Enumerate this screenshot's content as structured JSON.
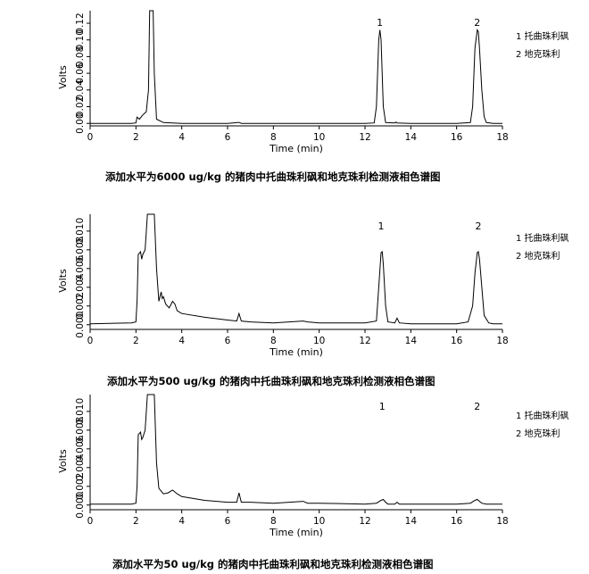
{
  "chart_data": [
    {
      "type": "line",
      "title": "添加水平为6000 ug/kg 的猪肉中托曲珠利砜和地克珠利检测液相色谱图",
      "xlabel": "Time (min)",
      "ylabel": "Volts",
      "xlim": [
        0,
        18
      ],
      "xticks": [
        "0",
        "2",
        "4",
        "6",
        "8",
        "10",
        "12",
        "14",
        "16",
        "18"
      ],
      "yticks": [
        "0.00",
        "0.02",
        "0.04",
        "0.06",
        "0.08",
        "0.10",
        "0.12"
      ],
      "ylim": [
        -0.003,
        0.135
      ],
      "peak_labels": [
        {
          "label": "1",
          "x": 12.65
        },
        {
          "label": "2",
          "x": 16.9
        }
      ],
      "legend": [
        "1  托曲珠利砜",
        "2  地克珠利"
      ],
      "x": [
        0,
        1.8,
        2.0,
        2.05,
        2.15,
        2.3,
        2.45,
        2.55,
        2.6,
        2.65,
        2.7,
        2.75,
        2.8,
        2.9,
        3.2,
        4.0,
        6.0,
        6.5,
        6.6,
        8.0,
        10.0,
        12.0,
        12.4,
        12.5,
        12.6,
        12.65,
        12.7,
        12.8,
        12.9,
        13.3,
        13.35,
        13.4,
        14.0,
        16.0,
        16.6,
        16.7,
        16.8,
        16.9,
        16.95,
        17.0,
        17.1,
        17.2,
        17.3,
        17.6,
        18.0
      ],
      "y": [
        0.0,
        0.0,
        0.0005,
        0.0075,
        0.005,
        0.01,
        0.014,
        0.04,
        0.135,
        0.135,
        0.135,
        0.135,
        0.06,
        0.005,
        0.001,
        0.0,
        0.0,
        0.0012,
        0.0,
        0.0,
        0.0,
        0.0,
        0.0005,
        0.02,
        0.1,
        0.112,
        0.1,
        0.02,
        0.001,
        0.0005,
        0.0015,
        0.0005,
        0.0,
        0.0,
        0.001,
        0.02,
        0.09,
        0.112,
        0.11,
        0.09,
        0.04,
        0.008,
        0.001,
        0.0,
        0.0
      ]
    },
    {
      "type": "line",
      "title": "添加水平为500 ug/kg 的猪肉中托曲珠利砜和地克珠利检测液相色谱图",
      "xlabel": "Time (min)",
      "ylabel": "Volts",
      "xlim": [
        0,
        18
      ],
      "xticks": [
        "0",
        "2",
        "4",
        "6",
        "8",
        "10",
        "12",
        "14",
        "16",
        "18"
      ],
      "yticks": [
        "0.000",
        "0.002",
        "0.004",
        "0.006",
        "0.008",
        "0.010"
      ],
      "ylim": [
        -0.0005,
        0.0118
      ],
      "peak_labels": [
        {
          "label": "1",
          "x": 12.7
        },
        {
          "label": "2",
          "x": 16.95
        }
      ],
      "legend": [
        "1  托曲珠利砜",
        "2  地克珠利"
      ],
      "x": [
        0,
        1.8,
        2.0,
        2.05,
        2.1,
        2.2,
        2.25,
        2.3,
        2.4,
        2.5,
        2.6,
        2.7,
        2.8,
        2.9,
        3.0,
        3.1,
        3.15,
        3.2,
        3.3,
        3.45,
        3.6,
        3.7,
        3.8,
        4.0,
        5.0,
        6.0,
        6.4,
        6.5,
        6.6,
        7.0,
        8.0,
        9.3,
        9.5,
        10.0,
        12.0,
        12.5,
        12.6,
        12.7,
        12.75,
        12.8,
        12.9,
        13.0,
        13.3,
        13.4,
        13.5,
        14.0,
        16.0,
        16.5,
        16.7,
        16.8,
        16.9,
        16.95,
        17.0,
        17.1,
        17.2,
        17.4,
        17.6,
        18.0
      ],
      "y": [
        0.0001,
        0.0002,
        0.0003,
        0.0025,
        0.0075,
        0.0078,
        0.007,
        0.0075,
        0.008,
        0.0118,
        0.0118,
        0.0118,
        0.0118,
        0.006,
        0.0025,
        0.0035,
        0.0028,
        0.003,
        0.0022,
        0.0018,
        0.0025,
        0.0022,
        0.0015,
        0.0012,
        0.0008,
        0.0005,
        0.0004,
        0.0012,
        0.0004,
        0.0003,
        0.0002,
        0.0004,
        0.0003,
        0.0002,
        0.0002,
        0.0004,
        0.004,
        0.0077,
        0.0078,
        0.0065,
        0.002,
        0.0003,
        0.0002,
        0.0007,
        0.0002,
        0.0001,
        0.0001,
        0.0003,
        0.002,
        0.0055,
        0.0077,
        0.0078,
        0.007,
        0.004,
        0.001,
        0.0002,
        0.0001,
        0.0001
      ]
    },
    {
      "type": "line",
      "title": "添加水平为50 ug/kg 的猪肉中托曲珠利砜和地克珠利检测液相色谱图",
      "xlabel": "Time (min)",
      "ylabel": "Volts",
      "xlim": [
        0,
        18
      ],
      "xticks": [
        "0",
        "2",
        "4",
        "6",
        "8",
        "10",
        "12",
        "14",
        "16",
        "18"
      ],
      "yticks": [
        "0.000",
        "0.002",
        "0.004",
        "0.006",
        "0.008",
        "0.010"
      ],
      "ylim": [
        -0.0005,
        0.0118
      ],
      "peak_labels": [
        {
          "label": "1",
          "x": 12.75
        },
        {
          "label": "2",
          "x": 16.9
        }
      ],
      "legend": [
        "1  托曲珠利砜",
        "2  地克珠利"
      ],
      "x": [
        0,
        1.8,
        2.0,
        2.05,
        2.1,
        2.2,
        2.25,
        2.3,
        2.4,
        2.5,
        2.6,
        2.7,
        2.8,
        2.9,
        3.0,
        3.2,
        3.4,
        3.6,
        3.8,
        4.0,
        5.0,
        6.0,
        6.4,
        6.5,
        6.6,
        7.0,
        8.0,
        9.3,
        9.5,
        10.0,
        12.0,
        12.5,
        12.7,
        12.8,
        12.9,
        13.0,
        13.3,
        13.4,
        13.5,
        14.0,
        16.0,
        16.6,
        16.8,
        16.9,
        17.0,
        17.1,
        17.3,
        18.0
      ],
      "y": [
        0.0001,
        0.0001,
        0.0002,
        0.002,
        0.0075,
        0.0078,
        0.007,
        0.0072,
        0.008,
        0.0118,
        0.0118,
        0.0118,
        0.0118,
        0.0045,
        0.0018,
        0.0012,
        0.0013,
        0.0016,
        0.0012,
        0.0009,
        0.0005,
        0.0003,
        0.0003,
        0.0013,
        0.0003,
        0.0003,
        0.0002,
        0.0004,
        0.0002,
        0.0002,
        0.0001,
        0.0002,
        0.0005,
        0.0006,
        0.0003,
        0.0001,
        0.0001,
        0.0003,
        0.0001,
        0.0001,
        0.0001,
        0.0002,
        0.0005,
        0.0006,
        0.0004,
        0.0002,
        0.0001,
        0.0001
      ]
    }
  ]
}
